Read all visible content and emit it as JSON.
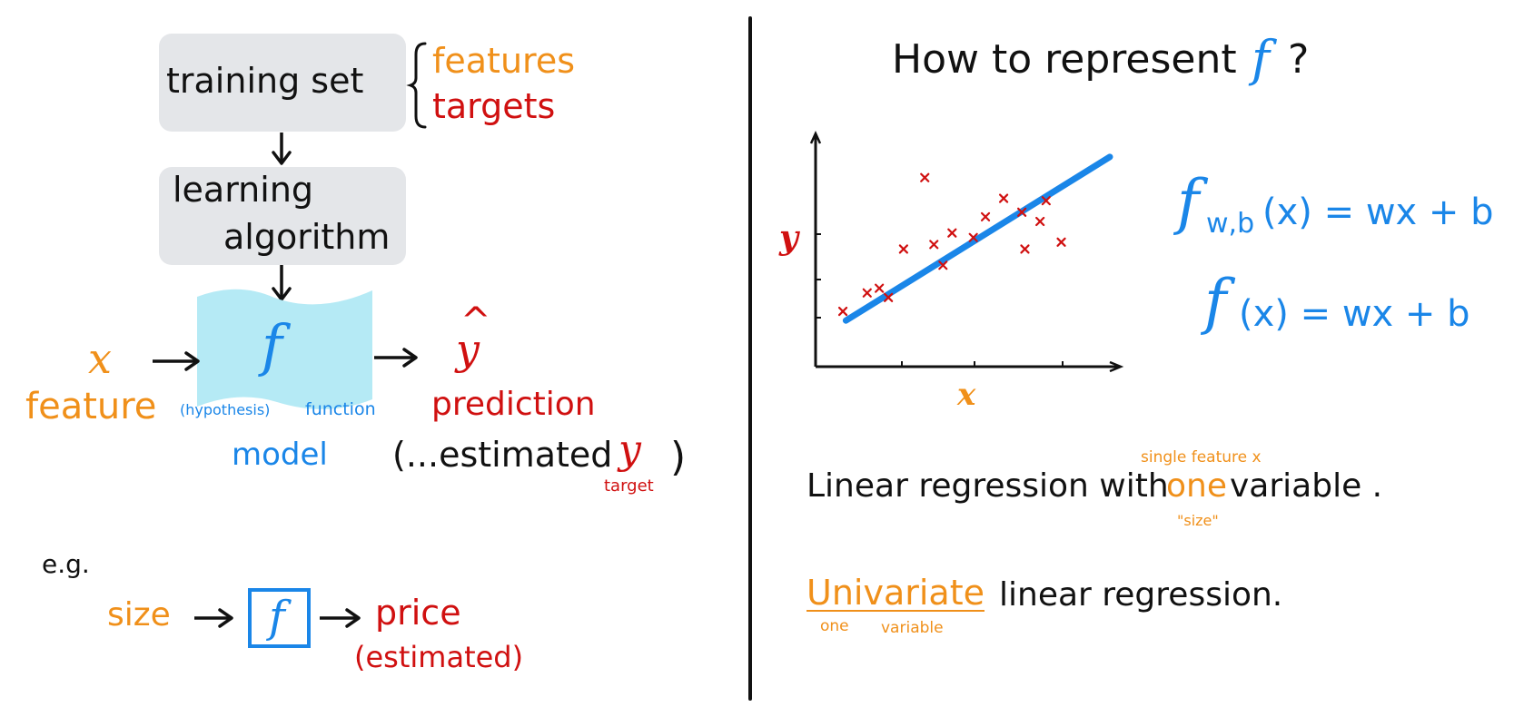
{
  "colors": {
    "black": "#111111",
    "orange": "#f0901a",
    "red": "#d01010",
    "blue": "#1a86e8",
    "gray_box": "#e4e6e9",
    "model_fill": "#b5eaf5"
  },
  "left": {
    "training_set": "training set",
    "features": "features",
    "targets": "targets",
    "learning": "learning",
    "algorithm": "algorithm",
    "f": "f",
    "x": "x",
    "feature": "feature",
    "hypothesis": "(hypothesis)",
    "function": "function",
    "model": "model",
    "y_hat": "y",
    "prediction": "prediction",
    "estimated_prefix": "(...estimated",
    "estimated_y": "y",
    "close_paren": ")",
    "target": "target",
    "eg": "e.g.",
    "size": "size",
    "f_box": "f",
    "price": "price",
    "estimated_paren": "(estimated)"
  },
  "right": {
    "question_prefix": "How to represent",
    "question_f": "f",
    "question_mark": "?",
    "axis_y": "y",
    "axis_x": "x",
    "formula1_f": "f",
    "formula1_sub": "w,b",
    "formula1_rest": "(x) = wx + b",
    "formula2_f": "f",
    "formula2_rest": "(x) = wx + b",
    "single_feature_note": "single feature x",
    "linreg_prefix": "Linear regression with",
    "linreg_one": "one",
    "linreg_suffix": "variable .",
    "size_note": "\"size\"",
    "univariate": "Univariate",
    "univariate_suffix": "linear regression.",
    "one_note": "one",
    "variable_note": "variable"
  },
  "chart_data": {
    "type": "scatter",
    "x": [
      0.09,
      0.17,
      0.21,
      0.24,
      0.29,
      0.36,
      0.39,
      0.42,
      0.45,
      0.52,
      0.56,
      0.62,
      0.68,
      0.69,
      0.74,
      0.76,
      0.81
    ],
    "y": [
      0.24,
      0.32,
      0.34,
      0.3,
      0.51,
      0.82,
      0.53,
      0.44,
      0.58,
      0.56,
      0.65,
      0.73,
      0.67,
      0.51,
      0.63,
      0.72,
      0.54
    ],
    "fit_line": {
      "x": [
        0.1,
        0.97
      ],
      "y": [
        0.2,
        0.91
      ]
    },
    "xlabel": "x",
    "ylabel": "y",
    "grid": false
  }
}
